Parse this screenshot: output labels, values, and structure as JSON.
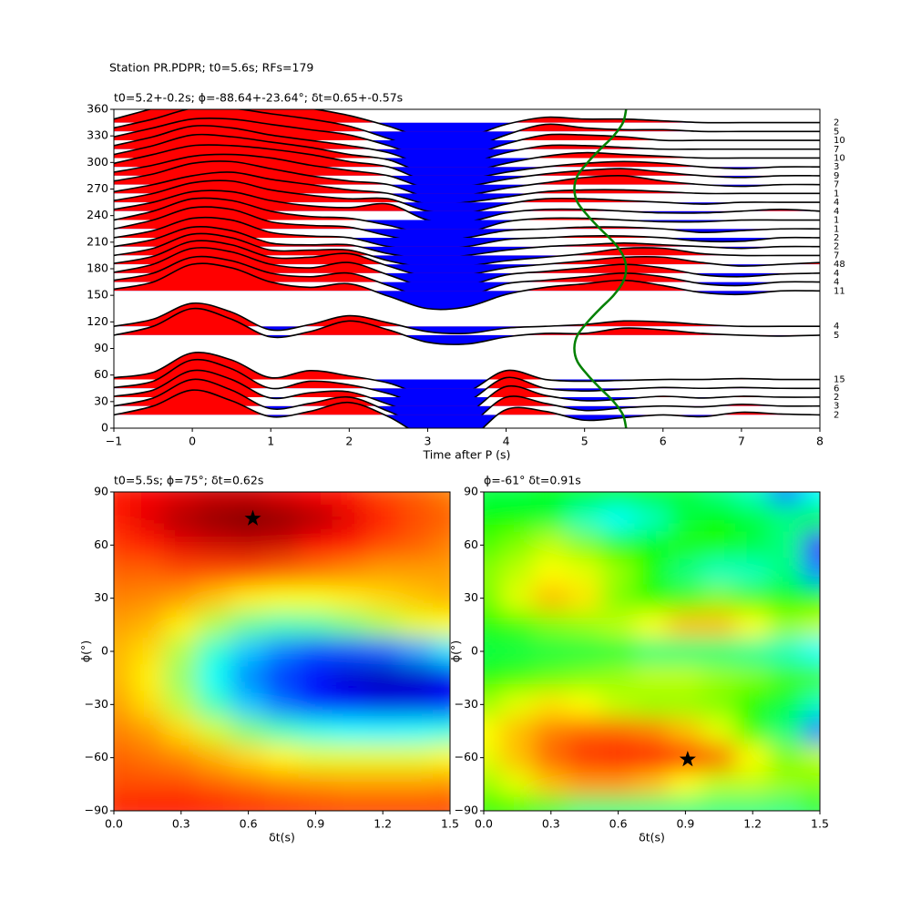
{
  "chart_data": [
    {
      "type": "wiggle",
      "suptitle": "Station PR.PDPR; t0=5.6s; RFs=179",
      "title": "t0=5.2+-0.2s; ϕ=-88.64+-23.64°; δt=0.65+-0.57s",
      "xlabel": "Time after P (s)",
      "xlim": [
        -1,
        8
      ],
      "ylim": [
        0,
        360
      ],
      "xticks": [
        {
          "value": -1,
          "label": "−1"
        },
        0,
        1,
        2,
        3,
        4,
        5,
        6,
        7,
        8
      ],
      "yticks": [
        0,
        30,
        60,
        90,
        120,
        150,
        180,
        210,
        240,
        270,
        300,
        330,
        360
      ],
      "positive_color": "#ff0000",
      "negative_color": "#0000ff",
      "line_color": "#000000",
      "x": [
        -1,
        -0.5,
        0,
        0.5,
        1,
        1.5,
        2,
        2.5,
        3,
        3.5,
        4,
        4.5,
        5,
        5.5,
        6,
        6.5,
        7,
        7.5,
        8
      ],
      "series": [
        {
          "baz": 345,
          "n": 2,
          "values": [
            4,
            16,
            28,
            28,
            22,
            16,
            8,
            -4,
            -18,
            -16,
            -2,
            6,
            4,
            4,
            2,
            0,
            0,
            0,
            0
          ]
        },
        {
          "baz": 335,
          "n": 5,
          "values": [
            4,
            14,
            26,
            26,
            20,
            14,
            6,
            -8,
            -22,
            -20,
            -4,
            8,
            4,
            2,
            2,
            0,
            0,
            0,
            0
          ]
        },
        {
          "baz": 325,
          "n": 10,
          "values": [
            4,
            14,
            24,
            24,
            18,
            12,
            6,
            -6,
            -20,
            -18,
            -4,
            6,
            6,
            4,
            0,
            0,
            0,
            0,
            0
          ]
        },
        {
          "baz": 315,
          "n": 7,
          "values": [
            4,
            14,
            26,
            24,
            16,
            10,
            4,
            -4,
            -18,
            -16,
            -4,
            4,
            4,
            2,
            0,
            0,
            0,
            0,
            0
          ]
        },
        {
          "baz": 305,
          "n": 10,
          "values": [
            4,
            14,
            26,
            24,
            18,
            12,
            4,
            -2,
            -18,
            -16,
            -6,
            2,
            6,
            4,
            2,
            0,
            0,
            0,
            0
          ]
        },
        {
          "baz": 295,
          "n": 3,
          "values": [
            4,
            14,
            24,
            24,
            20,
            14,
            6,
            0,
            -16,
            -14,
            -6,
            0,
            4,
            6,
            4,
            0,
            -2,
            0,
            0
          ]
        },
        {
          "baz": 285,
          "n": 9,
          "values": [
            4,
            12,
            22,
            24,
            20,
            12,
            6,
            0,
            -14,
            -12,
            -4,
            2,
            6,
            8,
            4,
            0,
            -2,
            0,
            0
          ]
        },
        {
          "baz": 275,
          "n": 7,
          "values": [
            4,
            12,
            24,
            26,
            18,
            10,
            4,
            0,
            -14,
            -12,
            -4,
            2,
            8,
            10,
            4,
            0,
            -2,
            0,
            0
          ]
        },
        {
          "baz": 265,
          "n": 1,
          "values": [
            2,
            10,
            20,
            24,
            16,
            10,
            4,
            0,
            -12,
            -10,
            -4,
            2,
            4,
            4,
            2,
            0,
            0,
            0,
            0
          ]
        },
        {
          "baz": 255,
          "n": 4,
          "values": [
            2,
            10,
            22,
            24,
            14,
            8,
            4,
            4,
            -10,
            -12,
            -2,
            4,
            4,
            2,
            0,
            -2,
            0,
            0,
            0
          ]
        },
        {
          "baz": 245,
          "n": 4,
          "values": [
            2,
            10,
            22,
            22,
            12,
            6,
            4,
            8,
            -10,
            -12,
            -2,
            2,
            2,
            0,
            -2,
            -2,
            0,
            2,
            0
          ]
        },
        {
          "baz": 235,
          "n": 1,
          "values": [
            0,
            10,
            24,
            22,
            10,
            4,
            2,
            -6,
            -16,
            -14,
            -2,
            2,
            2,
            0,
            -2,
            -2,
            0,
            0,
            0
          ]
        },
        {
          "baz": 225,
          "n": 1,
          "values": [
            0,
            10,
            24,
            22,
            8,
            4,
            2,
            -8,
            -16,
            -10,
            -2,
            0,
            2,
            2,
            0,
            -4,
            -2,
            0,
            0
          ]
        },
        {
          "baz": 215,
          "n": 2,
          "values": [
            0,
            8,
            22,
            20,
            6,
            2,
            0,
            -10,
            -14,
            -10,
            -2,
            0,
            2,
            2,
            0,
            -4,
            -4,
            0,
            0
          ]
        },
        {
          "baz": 205,
          "n": 2,
          "values": [
            0,
            8,
            22,
            18,
            4,
            2,
            2,
            -8,
            -14,
            -10,
            -4,
            0,
            2,
            4,
            2,
            0,
            -2,
            0,
            0
          ]
        },
        {
          "baz": 195,
          "n": 7,
          "values": [
            0,
            8,
            24,
            20,
            6,
            6,
            6,
            -6,
            -14,
            -12,
            -6,
            -2,
            2,
            8,
            8,
            2,
            0,
            0,
            0
          ]
        },
        {
          "baz": 185,
          "n": 48,
          "values": [
            1,
            9,
            26,
            22,
            8,
            8,
            12,
            -2,
            -14,
            -12,
            -4,
            0,
            4,
            8,
            8,
            2,
            -2,
            0,
            2
          ]
        },
        {
          "baz": 175,
          "n": 4,
          "values": [
            1,
            10,
            28,
            24,
            10,
            6,
            12,
            -2,
            -16,
            -14,
            -2,
            2,
            6,
            10,
            6,
            -2,
            -4,
            -1,
            0
          ]
        },
        {
          "baz": 165,
          "n": 4,
          "values": [
            2,
            10,
            28,
            24,
            10,
            6,
            10,
            -4,
            -18,
            -16,
            -2,
            2,
            6,
            10,
            6,
            -2,
            -4,
            0,
            0
          ]
        },
        {
          "baz": 155,
          "n": 11,
          "values": [
            2,
            10,
            30,
            26,
            10,
            4,
            8,
            -6,
            -20,
            -18,
            -4,
            4,
            8,
            12,
            6,
            -2,
            -4,
            0,
            0
          ]
        },
        {
          "baz": 115,
          "n": 4,
          "values": [
            0,
            8,
            26,
            16,
            -4,
            2,
            12,
            4,
            -6,
            -8,
            -2,
            0,
            2,
            6,
            5,
            2,
            0,
            0,
            0
          ]
        },
        {
          "baz": 105,
          "n": 5,
          "values": [
            0,
            10,
            30,
            18,
            -2,
            4,
            16,
            6,
            -8,
            -10,
            -2,
            2,
            2,
            8,
            6,
            2,
            0,
            -1,
            0
          ]
        },
        {
          "baz": 55,
          "n": 15,
          "values": [
            2,
            8,
            30,
            22,
            2,
            10,
            4,
            -4,
            -18,
            -14,
            10,
            0,
            -2,
            -1,
            0,
            0,
            1,
            0,
            0
          ]
        },
        {
          "baz": 45,
          "n": 6,
          "values": [
            1,
            8,
            32,
            22,
            0,
            8,
            4,
            -6,
            -20,
            -15,
            12,
            0,
            -3,
            -1,
            1,
            0,
            1,
            0,
            0
          ]
        },
        {
          "baz": 35,
          "n": 2,
          "values": [
            1,
            8,
            30,
            20,
            -1,
            5,
            6,
            -8,
            -22,
            -18,
            12,
            2,
            -4,
            -2,
            1,
            -1,
            1,
            0,
            0
          ]
        },
        {
          "baz": 25,
          "n": 3,
          "values": [
            0,
            9,
            30,
            18,
            -3,
            3,
            10,
            -6,
            -24,
            -22,
            10,
            3,
            -5,
            -2,
            0,
            -1,
            2,
            0,
            0
          ]
        },
        {
          "baz": 15,
          "n": 2,
          "values": [
            0,
            10,
            28,
            16,
            -2,
            4,
            14,
            -2,
            -26,
            -28,
            6,
            4,
            -6,
            -3,
            0,
            -2,
            3,
            1,
            0
          ]
        }
      ],
      "t0_curve": {
        "color": "#008000",
        "baz": [
          0,
          15,
          30,
          45,
          60,
          75,
          90,
          105,
          120,
          135,
          150,
          165,
          180,
          195,
          210,
          225,
          240,
          255,
          270,
          285,
          300,
          315,
          330,
          345,
          360
        ],
        "t": [
          5.53,
          5.49,
          5.37,
          5.2,
          5.04,
          4.91,
          4.87,
          4.91,
          5.04,
          5.2,
          5.37,
          5.49,
          5.53,
          5.49,
          5.37,
          5.2,
          5.04,
          4.91,
          4.87,
          4.91,
          5.04,
          5.2,
          5.37,
          5.49,
          5.53
        ]
      }
    },
    {
      "type": "heatmap",
      "title": "t0=5.5s; ϕ=75°; δt=0.62s",
      "xlabel": "δt(s)",
      "ylabel": "ϕ(°)",
      "colormap": "jet",
      "xlim": [
        0,
        1.5
      ],
      "ylim": [
        -90,
        90
      ],
      "xticks": [
        {
          "value": 0,
          "label": "0.0"
        },
        0.3,
        0.6,
        0.9,
        1.2,
        1.5
      ],
      "yticks": [
        {
          "value": -90,
          "label": "−90"
        },
        {
          "value": -60,
          "label": "−60"
        },
        {
          "value": -30,
          "label": "−30"
        },
        0,
        30,
        60,
        90
      ],
      "x": [
        0,
        0.15,
        0.3,
        0.45,
        0.6,
        0.75,
        0.9,
        1.05,
        1.2,
        1.35,
        1.5
      ],
      "y": [
        90,
        75,
        60,
        45,
        30,
        15,
        0,
        -15,
        -30,
        -45,
        -60,
        -75,
        -90
      ],
      "z": [
        [
          0.85,
          0.88,
          0.9,
          0.92,
          0.92,
          0.9,
          0.88,
          0.85,
          0.8,
          0.78,
          0.75
        ],
        [
          0.85,
          0.9,
          0.95,
          0.98,
          1,
          0.98,
          0.95,
          0.9,
          0.85,
          0.8,
          0.78
        ],
        [
          0.82,
          0.85,
          0.9,
          0.92,
          0.93,
          0.92,
          0.88,
          0.85,
          0.8,
          0.78,
          0.75
        ],
        [
          0.78,
          0.78,
          0.8,
          0.8,
          0.8,
          0.78,
          0.76,
          0.74,
          0.72,
          0.72,
          0.72
        ],
        [
          0.75,
          0.74,
          0.72,
          0.68,
          0.64,
          0.62,
          0.62,
          0.64,
          0.66,
          0.68,
          0.7
        ],
        [
          0.72,
          0.7,
          0.64,
          0.55,
          0.48,
          0.45,
          0.46,
          0.5,
          0.55,
          0.6,
          0.62
        ],
        [
          0.7,
          0.66,
          0.55,
          0.42,
          0.32,
          0.25,
          0.2,
          0.2,
          0.22,
          0.28,
          0.35
        ],
        [
          0.7,
          0.64,
          0.52,
          0.38,
          0.26,
          0.18,
          0.12,
          0.08,
          0.06,
          0.07,
          0.1
        ],
        [
          0.72,
          0.66,
          0.56,
          0.44,
          0.32,
          0.24,
          0.17,
          0.12,
          0.1,
          0.1,
          0.12
        ],
        [
          0.75,
          0.72,
          0.66,
          0.58,
          0.5,
          0.44,
          0.4,
          0.38,
          0.37,
          0.38,
          0.4
        ],
        [
          0.78,
          0.76,
          0.74,
          0.7,
          0.66,
          0.63,
          0.6,
          0.6,
          0.6,
          0.6,
          0.62
        ],
        [
          0.8,
          0.8,
          0.8,
          0.78,
          0.76,
          0.74,
          0.73,
          0.72,
          0.72,
          0.72,
          0.73
        ],
        [
          0.85,
          0.86,
          0.86,
          0.86,
          0.85,
          0.84,
          0.83,
          0.82,
          0.82,
          0.82,
          0.82
        ]
      ],
      "best": {
        "x": 0.62,
        "y": 75
      }
    },
    {
      "type": "heatmap",
      "title": "ϕ=-61° δt=0.91s",
      "xlabel": "δt(s)",
      "ylabel": "ϕ(°)",
      "colormap": "gist_rainbow",
      "xlim": [
        0,
        1.5
      ],
      "ylim": [
        -90,
        90
      ],
      "xticks": [
        {
          "value": 0,
          "label": "0.0"
        },
        0.3,
        0.6,
        0.9,
        1.2,
        1.5
      ],
      "yticks": [
        {
          "value": -90,
          "label": "−90"
        },
        {
          "value": -60,
          "label": "−60"
        },
        {
          "value": -30,
          "label": "−30"
        },
        0,
        30,
        60,
        90
      ],
      "x": [
        0,
        0.15,
        0.3,
        0.45,
        0.6,
        0.75,
        0.9,
        1.05,
        1.2,
        1.35,
        1.5
      ],
      "y": [
        90,
        75,
        60,
        45,
        30,
        15,
        0,
        -15,
        -30,
        -45,
        -60,
        -75,
        -90
      ],
      "z": [
        [
          0.55,
          0.55,
          0.6,
          0.6,
          0.6,
          0.6,
          0.55,
          0.5,
          0.45,
          0.3,
          0.4
        ],
        [
          0.6,
          0.6,
          0.55,
          0.45,
          0.4,
          0.45,
          0.55,
          0.6,
          0.55,
          0.5,
          0.55
        ],
        [
          0.65,
          0.7,
          0.75,
          0.7,
          0.62,
          0.6,
          0.62,
          0.62,
          0.55,
          0.5,
          0.15
        ],
        [
          0.7,
          0.75,
          0.8,
          0.78,
          0.72,
          0.62,
          0.5,
          0.45,
          0.45,
          0.5,
          0.3
        ],
        [
          0.68,
          0.78,
          0.85,
          0.82,
          0.7,
          0.62,
          0.65,
          0.7,
          0.65,
          0.6,
          0.6
        ],
        [
          0.62,
          0.65,
          0.7,
          0.72,
          0.75,
          0.8,
          0.85,
          0.85,
          0.8,
          0.72,
          0.75
        ],
        [
          0.55,
          0.55,
          0.55,
          0.55,
          0.55,
          0.5,
          0.5,
          0.5,
          0.48,
          0.45,
          0.4
        ],
        [
          0.62,
          0.65,
          0.68,
          0.7,
          0.72,
          0.75,
          0.75,
          0.72,
          0.7,
          0.65,
          0.65
        ],
        [
          0.72,
          0.78,
          0.82,
          0.8,
          0.75,
          0.72,
          0.72,
          0.7,
          0.62,
          0.55,
          0.45
        ],
        [
          0.8,
          0.85,
          0.9,
          0.92,
          0.92,
          0.9,
          0.85,
          0.78,
          0.65,
          0.5,
          0.3
        ],
        [
          0.78,
          0.85,
          0.92,
          0.96,
          0.98,
          1,
          0.98,
          0.92,
          0.8,
          0.7,
          0.75
        ],
        [
          0.72,
          0.78,
          0.85,
          0.88,
          0.88,
          0.85,
          0.8,
          0.75,
          0.75,
          0.72,
          0.7
        ],
        [
          0.6,
          0.6,
          0.55,
          0.5,
          0.5,
          0.5,
          0.5,
          0.5,
          0.5,
          0.5,
          0.55
        ]
      ],
      "best": {
        "x": 0.91,
        "y": -61
      }
    }
  ]
}
